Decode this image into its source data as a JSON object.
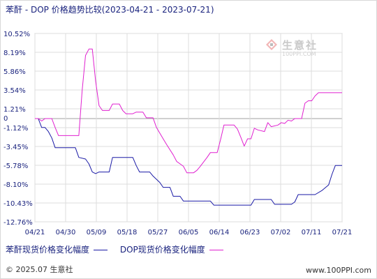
{
  "title": "苯酐 - DOP 价格趋势比较(2023-04-21 - 2023-07-21)",
  "watermark": {
    "name": "生意社",
    "url": "100PPI.COM"
  },
  "footer": {
    "left": "© 2025.07 生意社",
    "right": "www.100PPI.com"
  },
  "colors": {
    "series_1": "#1a1aa6",
    "series_2": "#e020d0",
    "grid": "#dcdcdc",
    "zero_line": "#a0a0a0",
    "axis_text": "#1a237e"
  },
  "chart_data": {
    "type": "line",
    "title": "苯酐 - DOP 价格趋势比较(2023-04-21 - 2023-07-21)",
    "x_ticks": [
      "04/21",
      "04/30",
      "05/09",
      "05/18",
      "05/27",
      "06/05",
      "06/14",
      "06/23",
      "07/02",
      "07/11",
      "07/21"
    ],
    "y_ticks": [
      "10.52%",
      "8.19%",
      "5.86%",
      "3.54%",
      "1.21%",
      "-1.12%",
      "-3.45%",
      "-5.78%",
      "-8.10%",
      "-10.43%",
      "-12.76%"
    ],
    "ylim": [
      -12.76,
      10.52
    ],
    "x_domain": [
      "2023-04-21",
      "2023-07-21"
    ],
    "legend_position": "bottom",
    "series": [
      {
        "name": "苯酐现货价格变化幅度",
        "points": [
          [
            "2023-04-21",
            0.0
          ],
          [
            "2023-04-22",
            0.0
          ],
          [
            "2023-04-23",
            -1.1
          ],
          [
            "2023-04-24",
            -1.1
          ],
          [
            "2023-04-25",
            -1.6
          ],
          [
            "2023-04-26",
            -2.4
          ],
          [
            "2023-04-27",
            -3.6
          ],
          [
            "2023-04-28",
            -3.6
          ],
          [
            "2023-05-01",
            -3.6
          ],
          [
            "2023-05-03",
            -3.6
          ],
          [
            "2023-05-04",
            -4.8
          ],
          [
            "2023-05-06",
            -5.0
          ],
          [
            "2023-05-07",
            -5.6
          ],
          [
            "2023-05-08",
            -6.6
          ],
          [
            "2023-05-09",
            -6.8
          ],
          [
            "2023-05-10",
            -6.6
          ],
          [
            "2023-05-12",
            -6.6
          ],
          [
            "2023-05-13",
            -6.6
          ],
          [
            "2023-05-14",
            -4.8
          ],
          [
            "2023-05-19",
            -4.8
          ],
          [
            "2023-05-20",
            -4.8
          ],
          [
            "2023-05-21",
            -5.8
          ],
          [
            "2023-05-22",
            -6.6
          ],
          [
            "2023-05-23",
            -6.6
          ],
          [
            "2023-05-24",
            -6.6
          ],
          [
            "2023-05-25",
            -6.6
          ],
          [
            "2023-05-26",
            -7.1
          ],
          [
            "2023-05-28",
            -7.9
          ],
          [
            "2023-05-29",
            -8.5
          ],
          [
            "2023-05-31",
            -8.5
          ],
          [
            "2023-06-01",
            -9.6
          ],
          [
            "2023-06-03",
            -9.6
          ],
          [
            "2023-06-04",
            -10.2
          ],
          [
            "2023-06-12",
            -10.2
          ],
          [
            "2023-06-13",
            -10.7
          ],
          [
            "2023-06-24",
            -10.7
          ],
          [
            "2023-06-25",
            -10.0
          ],
          [
            "2023-06-30",
            -10.0
          ],
          [
            "2023-07-01",
            -10.6
          ],
          [
            "2023-07-06",
            -10.6
          ],
          [
            "2023-07-07",
            -10.3
          ],
          [
            "2023-07-08",
            -9.4
          ],
          [
            "2023-07-13",
            -9.4
          ],
          [
            "2023-07-15",
            -8.9
          ],
          [
            "2023-07-17",
            -8.2
          ],
          [
            "2023-07-18",
            -6.9
          ],
          [
            "2023-07-19",
            -5.8
          ],
          [
            "2023-07-21",
            -5.8
          ]
        ]
      },
      {
        "name": "DOP现货价格变化幅度",
        "points": [
          [
            "2023-04-21",
            0.0
          ],
          [
            "2023-04-22",
            0.0
          ],
          [
            "2023-04-23",
            -0.3
          ],
          [
            "2023-04-24",
            0.0
          ],
          [
            "2023-04-26",
            0.0
          ],
          [
            "2023-04-27",
            -1.1
          ],
          [
            "2023-04-28",
            -2.1
          ],
          [
            "2023-05-04",
            -2.1
          ],
          [
            "2023-05-05",
            3.5
          ],
          [
            "2023-05-06",
            7.8
          ],
          [
            "2023-05-07",
            8.6
          ],
          [
            "2023-05-08",
            8.6
          ],
          [
            "2023-05-09",
            4.6
          ],
          [
            "2023-05-10",
            1.6
          ],
          [
            "2023-05-11",
            1.0
          ],
          [
            "2023-05-13",
            1.0
          ],
          [
            "2023-05-14",
            1.8
          ],
          [
            "2023-05-16",
            1.8
          ],
          [
            "2023-05-17",
            1.0
          ],
          [
            "2023-05-18",
            0.6
          ],
          [
            "2023-05-20",
            0.6
          ],
          [
            "2023-05-21",
            0.8
          ],
          [
            "2023-05-23",
            0.8
          ],
          [
            "2023-05-24",
            0.1
          ],
          [
            "2023-05-26",
            0.1
          ],
          [
            "2023-05-27",
            -1.1
          ],
          [
            "2023-05-29",
            -2.5
          ],
          [
            "2023-05-30",
            -3.2
          ],
          [
            "2023-06-01",
            -4.5
          ],
          [
            "2023-06-02",
            -5.3
          ],
          [
            "2023-06-04",
            -5.9
          ],
          [
            "2023-06-05",
            -6.7
          ],
          [
            "2023-06-07",
            -6.7
          ],
          [
            "2023-06-08",
            -6.4
          ],
          [
            "2023-06-09",
            -5.9
          ],
          [
            "2023-06-11",
            -4.8
          ],
          [
            "2023-06-12",
            -4.2
          ],
          [
            "2023-06-14",
            -4.2
          ],
          [
            "2023-06-15",
            -2.6
          ],
          [
            "2023-06-16",
            -0.8
          ],
          [
            "2023-06-19",
            -0.8
          ],
          [
            "2023-06-20",
            -1.3
          ],
          [
            "2023-06-21",
            -2.3
          ],
          [
            "2023-06-22",
            -3.4
          ],
          [
            "2023-06-23",
            -2.5
          ],
          [
            "2023-06-24",
            -2.5
          ],
          [
            "2023-06-25",
            -1.2
          ],
          [
            "2023-06-26",
            -1.4
          ],
          [
            "2023-06-28",
            -1.6
          ],
          [
            "2023-06-29",
            -0.5
          ],
          [
            "2023-06-30",
            -1.0
          ],
          [
            "2023-07-02",
            -0.8
          ],
          [
            "2023-07-03",
            -0.5
          ],
          [
            "2023-07-04",
            -0.6
          ],
          [
            "2023-07-05",
            -0.2
          ],
          [
            "2023-07-06",
            -0.3
          ],
          [
            "2023-07-07",
            0.0
          ],
          [
            "2023-07-09",
            0.0
          ],
          [
            "2023-07-10",
            1.9
          ],
          [
            "2023-07-11",
            2.2
          ],
          [
            "2023-07-12",
            2.2
          ],
          [
            "2023-07-13",
            2.8
          ],
          [
            "2023-07-14",
            3.2
          ],
          [
            "2023-07-21",
            3.2
          ]
        ]
      }
    ]
  }
}
